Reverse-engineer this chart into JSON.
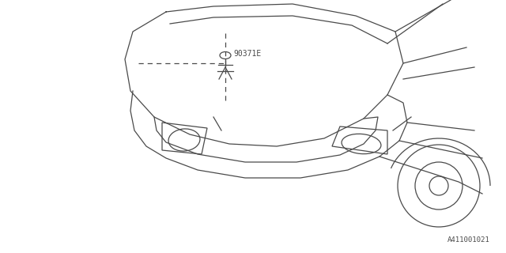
{
  "bg_color": "#ffffff",
  "line_color": "#4a4a4a",
  "fig_width": 6.4,
  "fig_height": 3.2,
  "dpi": 100,
  "part_label": "90371E",
  "diagram_id": "A411001021"
}
